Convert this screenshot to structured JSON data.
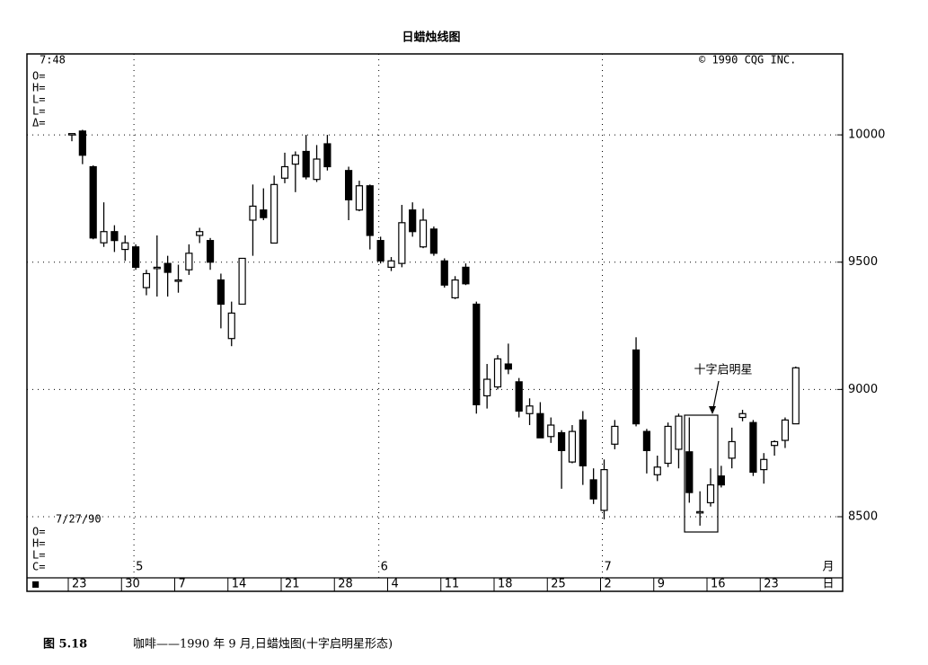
{
  "chart_data": {
    "type": "candlestick",
    "title": "日蜡烛线图",
    "time": "7:48",
    "copyright": "© 1990 CQG INC.",
    "readout_labels": [
      "O=",
      "H=",
      "L=",
      "L=",
      "Δ="
    ],
    "cursor_date": "7/27/90",
    "cursor_labels": [
      "O=",
      "H=",
      "L=",
      "C="
    ],
    "corner_mark": "■",
    "month_unit": "月",
    "day_unit": "日",
    "categories": [
      "23",
      null,
      null,
      null,
      null,
      "30",
      null,
      null,
      null,
      null,
      "7",
      null,
      null,
      null,
      null,
      "14",
      null,
      null,
      null,
      null,
      "21",
      null,
      null,
      null,
      null,
      "28",
      null,
      null,
      null,
      null,
      "4",
      null,
      null,
      null,
      null,
      "11",
      null,
      null,
      null,
      null,
      "18",
      null,
      null,
      null,
      null,
      "25",
      null,
      null,
      null,
      null,
      "2",
      null,
      null,
      null,
      null,
      "9",
      null,
      null,
      null,
      null,
      "16",
      null,
      null,
      null,
      null,
      "23",
      null,
      null,
      null
    ],
    "month_categories": [
      null,
      null,
      null,
      null,
      null,
      null,
      "5",
      null,
      null,
      null,
      null,
      null,
      null,
      null,
      null,
      null,
      null,
      null,
      null,
      null,
      null,
      null,
      null,
      null,
      null,
      null,
      null,
      null,
      null,
      "6",
      null,
      null,
      null,
      null,
      null,
      null,
      null,
      null,
      null,
      null,
      null,
      null,
      null,
      null,
      null,
      null,
      null,
      null,
      null,
      null,
      "7",
      null,
      null,
      null,
      null,
      null,
      null,
      null,
      null,
      null,
      null,
      null,
      null,
      null,
      null,
      null,
      null,
      null,
      null
    ],
    "open": [
      10005,
      10015,
      9875,
      9576,
      9620,
      9550,
      9560,
      9400,
      9475,
      9495,
      9430,
      9470,
      9605,
      9585,
      9430,
      9200,
      9335,
      9665,
      9705,
      9575,
      9830,
      9885,
      9935,
      9825,
      9965,
      null,
      9860,
      9705,
      9800,
      9585,
      9480,
      9495,
      9705,
      9560,
      9630,
      9505,
      9360,
      9480,
      9335,
      8975,
      9010,
      9100,
      9030,
      8905,
      8905,
      8815,
      8830,
      8715,
      8880,
      8645,
      8525,
      8785,
      null,
      9155,
      8835,
      8665,
      8710,
      8765,
      8755,
      8520,
      8555,
      8660,
      8730,
      8890,
      8870,
      8685,
      8780,
      8800,
      8865
    ],
    "high": [
      10005,
      10020,
      9880,
      9735,
      9645,
      9605,
      9570,
      9470,
      9605,
      9525,
      9490,
      9570,
      9635,
      9595,
      9455,
      9345,
      9515,
      9805,
      9790,
      9840,
      9930,
      9935,
      10000,
      9960,
      10000,
      null,
      9875,
      9820,
      9805,
      9600,
      9520,
      9725,
      9735,
      9710,
      9640,
      9515,
      9445,
      9495,
      9345,
      9100,
      9135,
      9180,
      9045,
      8965,
      8950,
      8890,
      8840,
      8860,
      8915,
      8690,
      8725,
      8880,
      null,
      9205,
      8845,
      8740,
      8870,
      8905,
      8890,
      8600,
      8690,
      8700,
      8850,
      8920,
      8880,
      8750,
      8800,
      8890,
      9090
    ],
    "low": [
      9975,
      9885,
      9590,
      9560,
      9540,
      9505,
      9470,
      9370,
      9365,
      9365,
      9380,
      9450,
      9575,
      9470,
      9240,
      9170,
      9335,
      9525,
      9665,
      9575,
      9810,
      9775,
      9825,
      9815,
      9860,
      null,
      9665,
      9700,
      9550,
      9495,
      9465,
      9480,
      9600,
      9555,
      9525,
      9400,
      9355,
      9410,
      8905,
      8925,
      9000,
      9060,
      8890,
      8860,
      8810,
      8790,
      8610,
      8710,
      8625,
      8550,
      8490,
      8765,
      null,
      8855,
      8670,
      8640,
      8695,
      8690,
      8555,
      8465,
      8540,
      8615,
      8690,
      8875,
      8660,
      8630,
      8740,
      8770,
      8865
    ],
    "close": [
      10005,
      9920,
      9595,
      9620,
      9585,
      9576,
      9480,
      9455,
      9480,
      9460,
      9430,
      9535,
      9620,
      9500,
      9335,
      9300,
      9515,
      9720,
      9675,
      9805,
      9875,
      9920,
      9835,
      9905,
      9875,
      null,
      9745,
      9800,
      9605,
      9505,
      9505,
      9655,
      9620,
      9665,
      9535,
      9410,
      9430,
      9415,
      8940,
      9040,
      9120,
      9080,
      8915,
      8935,
      8810,
      8860,
      8760,
      8835,
      8700,
      8570,
      8685,
      8855,
      null,
      8865,
      8760,
      8695,
      8855,
      8895,
      8595,
      8520,
      8625,
      8625,
      8795,
      8905,
      8675,
      8725,
      8795,
      8880,
      9085
    ],
    "up_color": "#ffffff",
    "down_color": "#000000",
    "ylim": [
      8260,
      10318
    ],
    "yticks": [
      8500,
      9000,
      9500,
      10000
    ],
    "grid": true,
    "annotation": "十字启明星"
  },
  "caption": {
    "figure": "图 5.18",
    "text": "咖啡——1990 年 9 月,日蜡烛图(十字启明星形态)"
  }
}
